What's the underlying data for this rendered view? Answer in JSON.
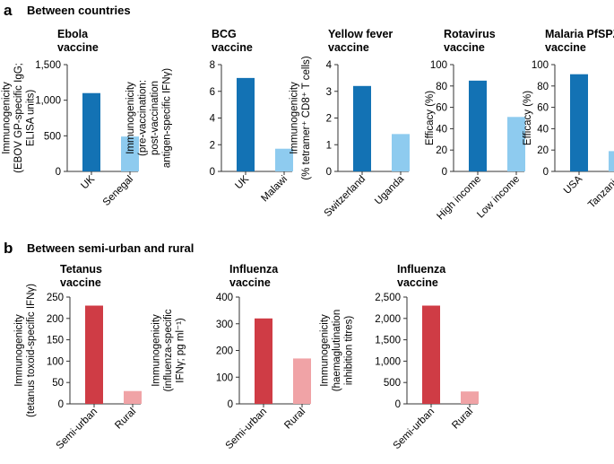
{
  "panels": {
    "a": {
      "letter": "a",
      "title": "Between countries"
    },
    "b": {
      "letter": "b",
      "title": "Between semi-urban and rural"
    }
  },
  "colors": {
    "dark_blue": "#1372b4",
    "light_blue": "#8ecbef",
    "dark_red": "#cf3c45",
    "light_red": "#f0a3a6",
    "axis": "#333333"
  },
  "chart_data": [
    {
      "id": "ebola",
      "panel": "a",
      "type": "bar",
      "title": [
        "Ebola",
        "vaccine"
      ],
      "ylabel": [
        "Immunogenicity",
        "(EBOV GP-specific IgG;",
        "ELISA units)"
      ],
      "categories": [
        "UK",
        "Senegal"
      ],
      "values": [
        1100,
        490
      ],
      "ylim": [
        0,
        1500
      ],
      "ticks": [
        0,
        500,
        1000,
        1500
      ],
      "tick_labels": [
        "0",
        "500",
        "1,000",
        "1,500"
      ],
      "colors": [
        "dark_blue",
        "light_blue"
      ]
    },
    {
      "id": "bcg",
      "panel": "a",
      "type": "bar",
      "title": [
        "BCG",
        "vaccine"
      ],
      "ylabel": [
        "Immunogenicity",
        "(pre-vaccination:",
        "post-vaccination",
        "antigen-specific IFNγ)"
      ],
      "categories": [
        "UK",
        "Malawi"
      ],
      "values": [
        7.0,
        1.7
      ],
      "ylim": [
        0,
        8
      ],
      "ticks": [
        0,
        2,
        4,
        6,
        8
      ],
      "tick_labels": [
        "0",
        "2",
        "4",
        "6",
        "8"
      ],
      "colors": [
        "dark_blue",
        "light_blue"
      ]
    },
    {
      "id": "yellow-fever",
      "panel": "a",
      "type": "bar",
      "title": [
        "Yellow fever",
        "vaccine"
      ],
      "ylabel": [
        "Immunogenicity",
        "(% tetramer⁺ CD8⁺ T cells)"
      ],
      "categories": [
        "Switzerland",
        "Uganda"
      ],
      "values": [
        3.2,
        1.4
      ],
      "ylim": [
        0,
        4
      ],
      "ticks": [
        0,
        1,
        2,
        3,
        4
      ],
      "tick_labels": [
        "0",
        "1",
        "2",
        "3",
        "4"
      ],
      "colors": [
        "dark_blue",
        "light_blue"
      ]
    },
    {
      "id": "rotavirus",
      "panel": "a",
      "type": "bar",
      "title": [
        "Rotavirus",
        "vaccine"
      ],
      "ylabel": [
        "Efficacy (%)"
      ],
      "categories": [
        "High income",
        "Low income"
      ],
      "values": [
        85,
        51
      ],
      "ylim": [
        0,
        100
      ],
      "ticks": [
        0,
        20,
        40,
        60,
        80,
        100
      ],
      "tick_labels": [
        "0",
        "20",
        "40",
        "60",
        "80",
        "100"
      ],
      "colors": [
        "dark_blue",
        "light_blue"
      ]
    },
    {
      "id": "malaria",
      "panel": "a",
      "type": "bar",
      "title": [
        "Malaria PfSPZ",
        "vaccine"
      ],
      "ylabel": [
        "Efficacy (%)"
      ],
      "categories": [
        "USA",
        "Tanzania"
      ],
      "values": [
        91,
        19
      ],
      "ylim": [
        0,
        100
      ],
      "ticks": [
        0,
        20,
        40,
        60,
        80,
        100
      ],
      "tick_labels": [
        "0",
        "20",
        "40",
        "60",
        "80",
        "100"
      ],
      "colors": [
        "dark_blue",
        "light_blue"
      ]
    },
    {
      "id": "tetanus",
      "panel": "b",
      "type": "bar",
      "title": [
        "Tetanus",
        "vaccine"
      ],
      "ylabel": [
        "Immunogenicity",
        "(tetanus toxoid-specific IFNγ)"
      ],
      "categories": [
        "Semi-urban",
        "Rural"
      ],
      "values": [
        230,
        30
      ],
      "ylim": [
        0,
        250
      ],
      "ticks": [
        0,
        50,
        100,
        150,
        200,
        250
      ],
      "tick_labels": [
        "0",
        "50",
        "100",
        "150",
        "200",
        "250"
      ],
      "colors": [
        "dark_red",
        "light_red"
      ]
    },
    {
      "id": "influenza-ifn",
      "panel": "b",
      "type": "bar",
      "title": [
        "Influenza",
        "vaccine"
      ],
      "ylabel": [
        "Immunogenicity",
        "(influenza-specific",
        "IFNγ; pg ml⁻¹)"
      ],
      "categories": [
        "Semi-urban",
        "Rural"
      ],
      "values": [
        320,
        170
      ],
      "ylim": [
        0,
        400
      ],
      "ticks": [
        0,
        100,
        200,
        300,
        400
      ],
      "tick_labels": [
        "0",
        "100",
        "200",
        "300",
        "400"
      ],
      "colors": [
        "dark_red",
        "light_red"
      ]
    },
    {
      "id": "influenza-hai",
      "panel": "b",
      "type": "bar",
      "title": [
        "Influenza",
        "vaccine"
      ],
      "ylabel": [
        "Immunogenicity",
        "(haemaglutination",
        "inhibition titres)"
      ],
      "categories": [
        "Semi-urban",
        "Rural"
      ],
      "values": [
        2300,
        290
      ],
      "ylim": [
        0,
        2500
      ],
      "ticks": [
        0,
        500,
        1000,
        1500,
        2000,
        2500
      ],
      "tick_labels": [
        "0",
        "500",
        "1,000",
        "1,500",
        "2,000",
        "2,500"
      ],
      "colors": [
        "dark_red",
        "light_red"
      ]
    }
  ]
}
